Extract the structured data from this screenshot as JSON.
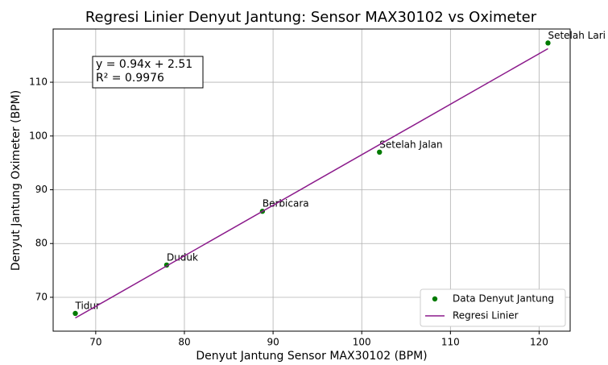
{
  "chart_data": {
    "type": "scatter",
    "title": "Regresi Linier Denyut Jantung: Sensor MAX30102 vs Oximeter",
    "x_label": "Denyut Jantung Sensor MAX30102 (BPM)",
    "y_label": "Denyut Jantung Oximeter (BPM)",
    "annotations": [
      "y = 0.94x + 2.51",
      "R² = 0.9976"
    ],
    "series": [
      {
        "name": "Data Denyut Jantung",
        "type": "scatter",
        "color": "#007a00",
        "x": [
          67.7,
          78,
          88.8,
          102,
          121
        ],
        "values": [
          67,
          76,
          86,
          97,
          117.3
        ],
        "point_labels": [
          "Tidur",
          "Duduk",
          "Berbicara",
          "Setelah Jalan",
          "Setelah Lari"
        ]
      },
      {
        "name": "Regresi Linier",
        "type": "line",
        "color": "#8b1a8b",
        "x": [
          67.7,
          121
        ],
        "values": [
          66.15,
          116.25
        ]
      }
    ],
    "xlim": [
      65.2,
      123.5
    ],
    "xticks": [
      70,
      80,
      90,
      100,
      110,
      120
    ],
    "ylim": [
      63.7,
      119.9
    ],
    "yticks": [
      70,
      80,
      90,
      100,
      110
    ],
    "grid": true,
    "legend": "lower right"
  }
}
